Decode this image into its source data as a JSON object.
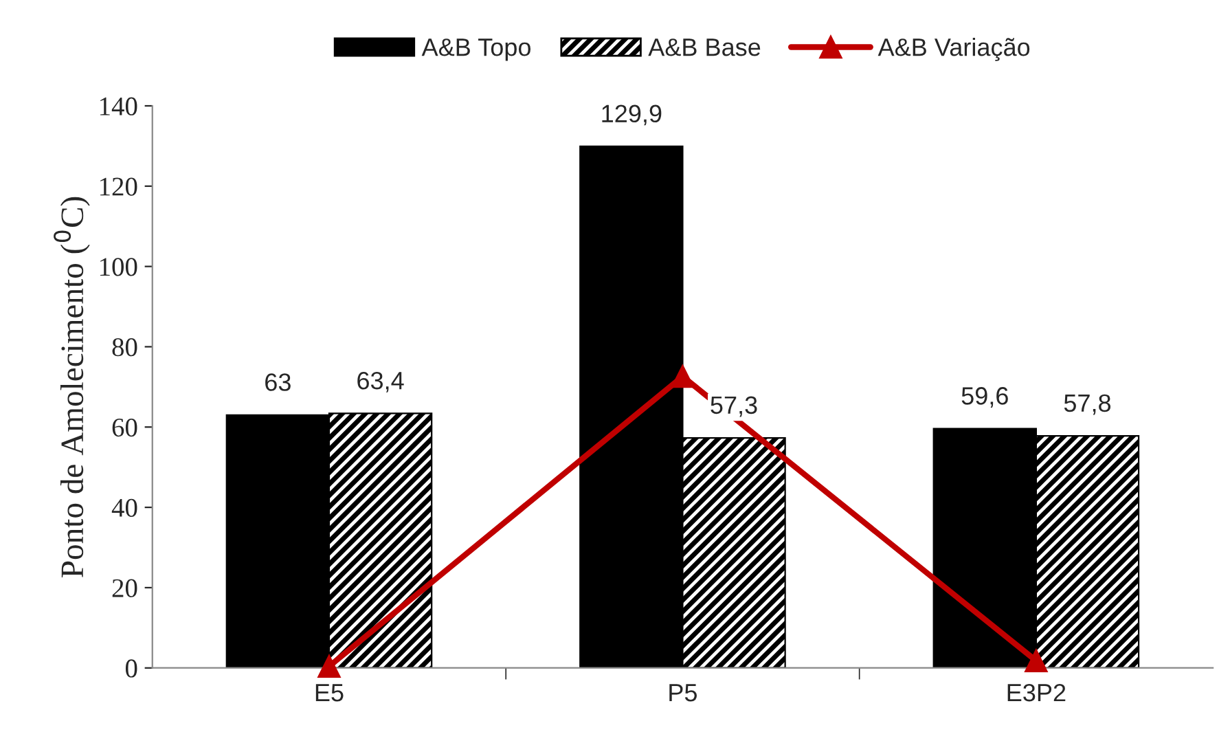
{
  "chart_data": {
    "type": "bar",
    "ylabel": "Ponto de Amolecimento ($^{0}$C)",
    "categories": [
      "E5",
      "P5",
      "E3P2"
    ],
    "series": [
      {
        "name": "A&B Topo",
        "color": "#000000",
        "values": [
          63,
          129.9,
          59.6
        ],
        "value_labels": [
          "63",
          "129,9",
          "59,6"
        ]
      },
      {
        "name": "A&B Base",
        "color": "#000000",
        "values": [
          63.4,
          57.3,
          57.8
        ],
        "value_labels": [
          "63,4",
          "57,3",
          "57,8"
        ]
      },
      {
        "name": "A&B Variação",
        "type": "line",
        "color": "#c00000",
        "marker": "triangle",
        "values": [
          0.4,
          72.6,
          1.8
        ]
      }
    ],
    "ylim": [
      0,
      140
    ],
    "yticks": [
      0,
      20,
      40,
      60,
      80,
      100,
      120,
      140
    ],
    "grid": false,
    "legend": "top"
  }
}
